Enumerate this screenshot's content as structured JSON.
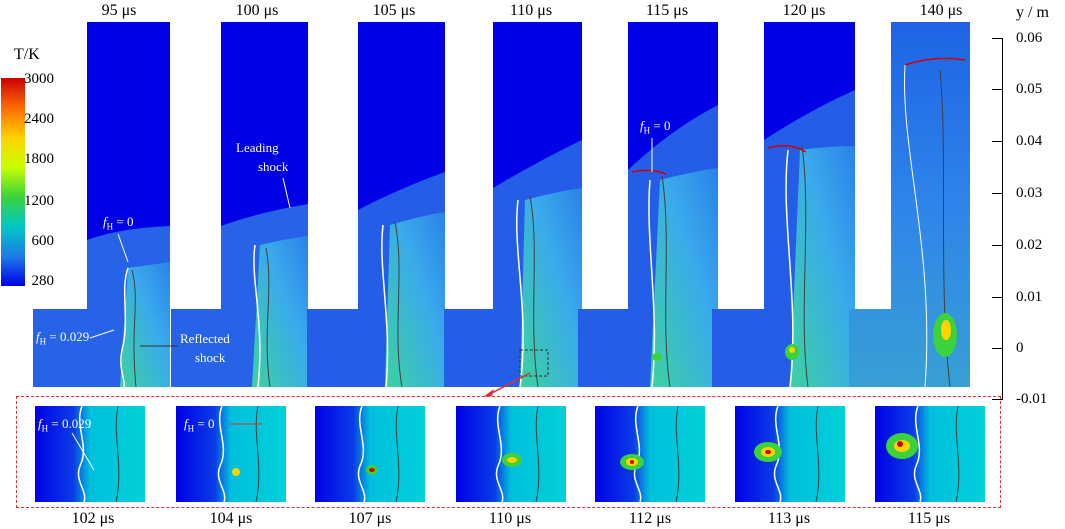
{
  "colorbar": {
    "title": "T/K",
    "ticks": [
      "3000",
      "2400",
      "1800",
      "1200",
      "600",
      "280"
    ],
    "colors": [
      "#cc0000",
      "#ff6a00",
      "#ffd200",
      "#c8ff00",
      "#3cd23c",
      "#00c8c8",
      "#1e7be6",
      "#0000e6"
    ]
  },
  "top_row": {
    "titles": [
      "95 μs",
      "100 μs",
      "105 μs",
      "110 μs",
      "115 μs",
      "120 μs",
      "140 μs"
    ]
  },
  "bottom_row": {
    "titles": [
      "102 μs",
      "104 μs",
      "107 μs",
      "110 μs",
      "112 μs",
      "113 μs",
      "115 μs"
    ]
  },
  "y_axis": {
    "label": "y / m",
    "ticks": [
      "0.06",
      "0.05",
      "0.04",
      "0.03",
      "0.02",
      "0.01",
      "0",
      "-0.01"
    ]
  },
  "annotations": {
    "leading_shock": "Leading",
    "leading_shock_2": "shock",
    "reflected_shock": "Reflected",
    "reflected_shock_2": "shock",
    "fh_eq": "f",
    "fh_sub": "H",
    "fh0_top1": " = 0",
    "fh029_top1": " = 0.029",
    "fh0_top5": " = 0",
    "fh029_bot1": " = 0.029",
    "fh0_bot2": " = 0"
  },
  "palette": {
    "dark_blue": "#0000e6",
    "blue": "#1e63e6",
    "light_blue": "#3a9bec",
    "cyan": "#00c8dc",
    "green": "#3cd23c",
    "red": "#d00000",
    "dashed_box": "#e03030"
  }
}
